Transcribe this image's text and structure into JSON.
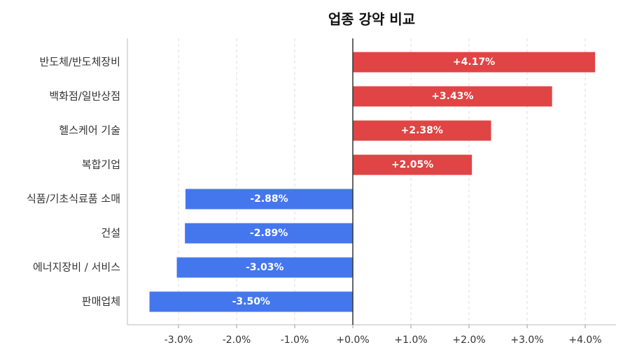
{
  "chart_data": {
    "type": "hbar",
    "title": "업종 강약 비교",
    "categories": [
      "반도체/반도체장비",
      "백화점/일반상점",
      "헬스케어 기술",
      "복합기업",
      "식품/기초식료품 소매",
      "건설",
      "에너지장비 / 서비스",
      "판매업체"
    ],
    "values": [
      4.17,
      3.43,
      2.38,
      2.05,
      -2.88,
      -2.89,
      -3.03,
      -3.5
    ],
    "value_labels": [
      "+4.17%",
      "+3.43%",
      "+2.38%",
      "+2.05%",
      "-2.88%",
      "-2.89%",
      "-3.03%",
      "-3.50%"
    ],
    "colors": [
      "#e04444",
      "#e04444",
      "#e04444",
      "#e04444",
      "#4477ee",
      "#4477ee",
      "#4477ee",
      "#4477ee"
    ],
    "xlim": [
      -3.88,
      4.53
    ],
    "xticks": [
      {
        "value": -3,
        "label": "-3.0%"
      },
      {
        "value": -2,
        "label": "-2.0%"
      },
      {
        "value": -1,
        "label": "-1.0%"
      },
      {
        "value": 0,
        "label": "+0.0%"
      },
      {
        "value": 1,
        "label": "+1.0%"
      },
      {
        "value": 2,
        "label": "+2.0%"
      },
      {
        "value": 3,
        "label": "+3.0%"
      },
      {
        "value": 4,
        "label": "+4.0%"
      }
    ],
    "grid": true
  }
}
